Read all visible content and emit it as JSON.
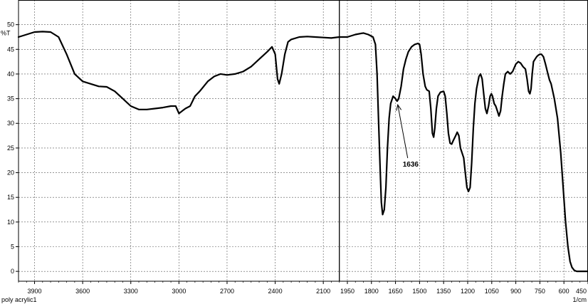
{
  "chart_data": {
    "type": "line",
    "ylabel": "%T",
    "xunit": "1/cm",
    "sample_name": "poly acrylic1",
    "xlim": [
      4000,
      450
    ],
    "ylim": [
      -2,
      55
    ],
    "grid": true,
    "x_ticks": [
      3900,
      3600,
      3300,
      3000,
      2700,
      2400,
      2100,
      1950,
      1800,
      1650,
      1500,
      1350,
      1200,
      1050,
      900,
      750,
      600,
      450
    ],
    "y_ticks": [
      0,
      5,
      10,
      15,
      20,
      25,
      30,
      35,
      40,
      45,
      50
    ],
    "marker_line_x": 2000,
    "annotation": {
      "label": "1636",
      "x": 1636,
      "y": 34.5
    },
    "series": [
      {
        "color": "#000000",
        "points": [
          [
            4000,
            47.5
          ],
          [
            3950,
            48.0
          ],
          [
            3900,
            48.5
          ],
          [
            3850,
            48.6
          ],
          [
            3800,
            48.5
          ],
          [
            3750,
            47.5
          ],
          [
            3700,
            44.0
          ],
          [
            3650,
            40.0
          ],
          [
            3600,
            38.5
          ],
          [
            3550,
            38.0
          ],
          [
            3500,
            37.5
          ],
          [
            3450,
            37.4
          ],
          [
            3400,
            36.5
          ],
          [
            3350,
            35.0
          ],
          [
            3300,
            33.5
          ],
          [
            3250,
            32.8
          ],
          [
            3200,
            32.8
          ],
          [
            3150,
            33.0
          ],
          [
            3100,
            33.2
          ],
          [
            3050,
            33.5
          ],
          [
            3020,
            33.5
          ],
          [
            3000,
            32.0
          ],
          [
            2980,
            32.5
          ],
          [
            2960,
            33.0
          ],
          [
            2930,
            33.5
          ],
          [
            2900,
            35.5
          ],
          [
            2870,
            36.5
          ],
          [
            2820,
            38.5
          ],
          [
            2780,
            39.5
          ],
          [
            2740,
            40.0
          ],
          [
            2700,
            39.8
          ],
          [
            2650,
            40.0
          ],
          [
            2600,
            40.5
          ],
          [
            2550,
            41.5
          ],
          [
            2500,
            43.0
          ],
          [
            2450,
            44.5
          ],
          [
            2420,
            45.5
          ],
          [
            2400,
            44.0
          ],
          [
            2385,
            39.0
          ],
          [
            2375,
            38.0
          ],
          [
            2360,
            40.0
          ],
          [
            2340,
            44.0
          ],
          [
            2320,
            46.5
          ],
          [
            2300,
            47.0
          ],
          [
            2250,
            47.5
          ],
          [
            2200,
            47.6
          ],
          [
            2150,
            47.5
          ],
          [
            2100,
            47.4
          ],
          [
            2050,
            47.3
          ],
          [
            2000,
            47.5
          ],
          [
            1950,
            47.5
          ],
          [
            1900,
            48.0
          ],
          [
            1850,
            48.3
          ],
          [
            1820,
            48.0
          ],
          [
            1790,
            47.5
          ],
          [
            1775,
            46.0
          ],
          [
            1765,
            40.0
          ],
          [
            1755,
            30.0
          ],
          [
            1745,
            20.0
          ],
          [
            1738,
            14.0
          ],
          [
            1730,
            11.5
          ],
          [
            1720,
            12.5
          ],
          [
            1710,
            17.0
          ],
          [
            1700,
            25.0
          ],
          [
            1690,
            31.0
          ],
          [
            1680,
            34.0
          ],
          [
            1665,
            35.5
          ],
          [
            1650,
            35.0
          ],
          [
            1640,
            34.5
          ],
          [
            1630,
            35.0
          ],
          [
            1615,
            37.5
          ],
          [
            1600,
            41.0
          ],
          [
            1585,
            43.0
          ],
          [
            1570,
            44.5
          ],
          [
            1550,
            45.5
          ],
          [
            1530,
            46.0
          ],
          [
            1510,
            46.2
          ],
          [
            1500,
            46.0
          ],
          [
            1490,
            44.0
          ],
          [
            1478,
            40.0
          ],
          [
            1465,
            37.5
          ],
          [
            1455,
            36.8
          ],
          [
            1440,
            36.5
          ],
          [
            1430,
            33.0
          ],
          [
            1420,
            28.0
          ],
          [
            1412,
            27.2
          ],
          [
            1405,
            29.0
          ],
          [
            1395,
            33.0
          ],
          [
            1385,
            35.5
          ],
          [
            1370,
            36.3
          ],
          [
            1350,
            36.5
          ],
          [
            1340,
            35.5
          ],
          [
            1330,
            32.0
          ],
          [
            1320,
            28.0
          ],
          [
            1310,
            26.0
          ],
          [
            1300,
            25.8
          ],
          [
            1290,
            26.5
          ],
          [
            1275,
            27.5
          ],
          [
            1265,
            28.2
          ],
          [
            1255,
            27.5
          ],
          [
            1245,
            25.0
          ],
          [
            1235,
            24.0
          ],
          [
            1225,
            23.0
          ],
          [
            1215,
            20.0
          ],
          [
            1205,
            17.0
          ],
          [
            1195,
            16.2
          ],
          [
            1185,
            17.0
          ],
          [
            1175,
            22.0
          ],
          [
            1165,
            29.0
          ],
          [
            1155,
            34.0
          ],
          [
            1145,
            37.0
          ],
          [
            1130,
            39.5
          ],
          [
            1120,
            40.0
          ],
          [
            1110,
            39.0
          ],
          [
            1100,
            36.0
          ],
          [
            1090,
            33.0
          ],
          [
            1080,
            32.0
          ],
          [
            1070,
            33.5
          ],
          [
            1060,
            35.5
          ],
          [
            1052,
            36.0
          ],
          [
            1045,
            35.5
          ],
          [
            1035,
            34.0
          ],
          [
            1025,
            33.5
          ],
          [
            1015,
            32.5
          ],
          [
            1005,
            31.5
          ],
          [
            995,
            32.5
          ],
          [
            985,
            35.5
          ],
          [
            975,
            38.0
          ],
          [
            965,
            40.0
          ],
          [
            950,
            40.5
          ],
          [
            935,
            40.0
          ],
          [
            920,
            40.5
          ],
          [
            900,
            42.0
          ],
          [
            885,
            42.5
          ],
          [
            870,
            42.2
          ],
          [
            855,
            41.5
          ],
          [
            840,
            41.0
          ],
          [
            830,
            39.0
          ],
          [
            820,
            36.5
          ],
          [
            812,
            36.0
          ],
          [
            805,
            37.0
          ],
          [
            798,
            40.0
          ],
          [
            790,
            42.5
          ],
          [
            780,
            43.0
          ],
          [
            770,
            43.5
          ],
          [
            760,
            43.8
          ],
          [
            750,
            44.0
          ],
          [
            740,
            44.0
          ],
          [
            728,
            43.5
          ],
          [
            715,
            42.0
          ],
          [
            700,
            40.0
          ],
          [
            690,
            38.8
          ],
          [
            680,
            38.0
          ],
          [
            660,
            35.0
          ],
          [
            640,
            31.0
          ],
          [
            620,
            24.0
          ],
          [
            605,
            17.0
          ],
          [
            590,
            10.0
          ],
          [
            575,
            5.0
          ],
          [
            562,
            2.0
          ],
          [
            550,
            0.8
          ],
          [
            535,
            0.2
          ],
          [
            520,
            0.0
          ],
          [
            500,
            0.0
          ],
          [
            470,
            0.0
          ],
          [
            450,
            0.0
          ]
        ]
      }
    ]
  }
}
